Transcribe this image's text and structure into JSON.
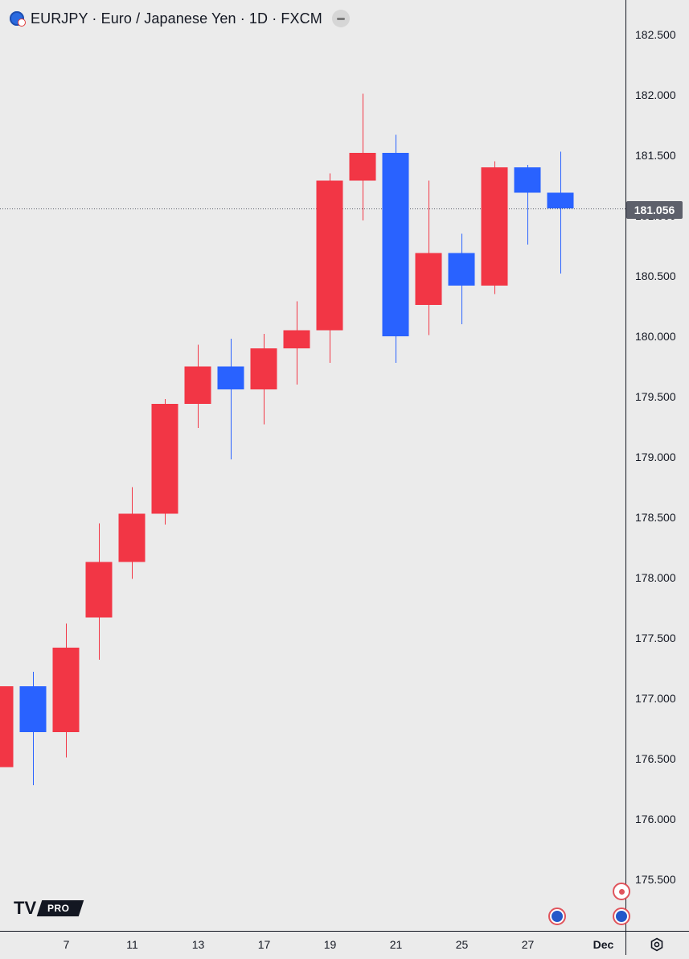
{
  "header": {
    "title": "EURJPY · Euro / Japanese Yen · 1D · FXCM",
    "symbol_icon": "eu-jp-flag-icon",
    "collapse_icon": "minus-icon"
  },
  "current_price": {
    "label": "181.056",
    "value": 181.056
  },
  "logo": {
    "mark": "TV",
    "badge": "PRO"
  },
  "colors": {
    "up": "#f23645",
    "down": "#2962ff",
    "background": "#ebebeb",
    "axis_text": "#131722",
    "price_line": "#5d606b"
  },
  "icons": {
    "event": "economic-event-icon",
    "settings": "gear-icon"
  },
  "chart_data": {
    "type": "candlestick",
    "title": "EURJPY · Euro / Japanese Yen · 1D · FXCM",
    "ylim": [
      175.16,
      182.88
    ],
    "y_ticks": [
      "182.500",
      "182.000",
      "181.500",
      "181.000",
      "180.500",
      "180.000",
      "179.500",
      "179.000",
      "178.500",
      "178.000",
      "177.500",
      "177.000",
      "176.500",
      "176.000",
      "175.500"
    ],
    "x_ticks": [
      "7",
      "11",
      "13",
      "17",
      "19",
      "21",
      "25",
      "27",
      "Dec"
    ],
    "grid": false,
    "candles": [
      {
        "date": "Nov 5",
        "open": 176.43,
        "high": 177.1,
        "low": 176.43,
        "close": 177.1
      },
      {
        "date": "Nov 6",
        "open": 177.1,
        "high": 177.22,
        "low": 176.28,
        "close": 176.72
      },
      {
        "date": "Nov 7",
        "open": 176.72,
        "high": 177.62,
        "low": 176.51,
        "close": 177.42
      },
      {
        "date": "Nov 8",
        "open": 177.67,
        "high": 178.45,
        "low": 177.32,
        "close": 178.13
      },
      {
        "date": "Nov 11",
        "open": 178.13,
        "high": 178.75,
        "low": 177.99,
        "close": 178.53
      },
      {
        "date": "Nov 12",
        "open": 178.53,
        "high": 179.48,
        "low": 178.44,
        "close": 179.44
      },
      {
        "date": "Nov 13",
        "open": 179.44,
        "high": 179.93,
        "low": 179.24,
        "close": 179.75
      },
      {
        "date": "Nov 14",
        "open": 179.75,
        "high": 179.98,
        "low": 178.98,
        "close": 179.56
      },
      {
        "date": "Nov 15",
        "open": 179.56,
        "high": 180.02,
        "low": 179.27,
        "close": 179.9
      },
      {
        "date": "Nov 18",
        "open": 179.9,
        "high": 180.29,
        "low": 179.6,
        "close": 180.05
      },
      {
        "date": "Nov 19",
        "open": 180.05,
        "high": 181.35,
        "low": 179.78,
        "close": 181.29
      },
      {
        "date": "Nov 20",
        "open": 181.29,
        "high": 182.01,
        "low": 180.96,
        "close": 181.52
      },
      {
        "date": "Nov 21",
        "open": 181.52,
        "high": 181.67,
        "low": 179.78,
        "close": 180.0
      },
      {
        "date": "Nov 22",
        "open": 180.26,
        "high": 181.29,
        "low": 180.01,
        "close": 180.69
      },
      {
        "date": "Nov 25",
        "open": 180.69,
        "high": 180.85,
        "low": 180.1,
        "close": 180.42
      },
      {
        "date": "Nov 26",
        "open": 180.42,
        "high": 181.45,
        "low": 180.35,
        "close": 181.4
      },
      {
        "date": "Nov 27",
        "open": 181.4,
        "high": 181.42,
        "low": 180.76,
        "close": 181.19
      },
      {
        "date": "Nov 28",
        "open": 181.19,
        "high": 181.53,
        "low": 180.52,
        "close": 181.06
      }
    ]
  }
}
